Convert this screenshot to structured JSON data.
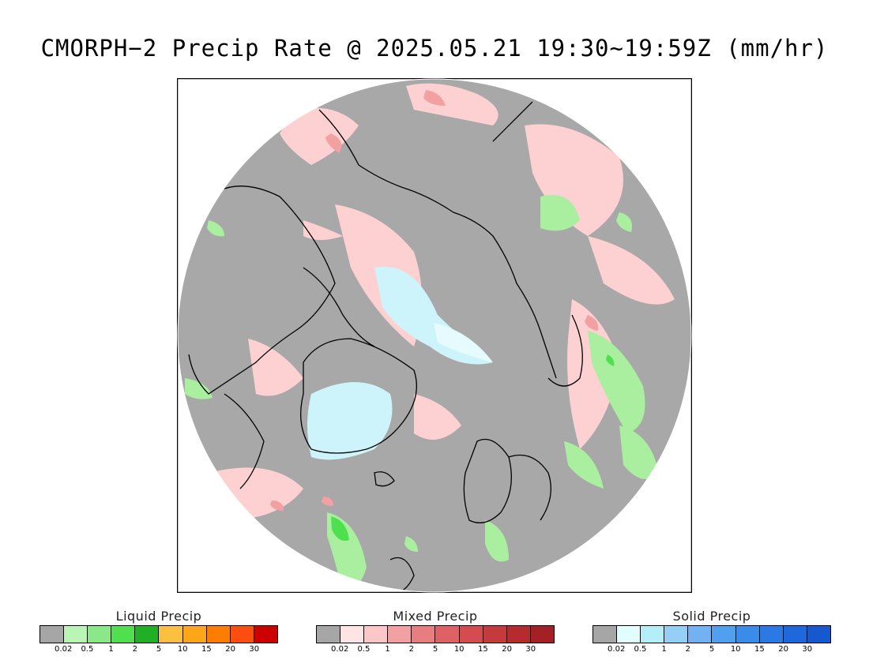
{
  "title": "CMORPH−2 Precip Rate @ 2025.05.21 19:30~19:59Z (mm/hr)",
  "map": {
    "projection": "north polar stereographic",
    "background_color": "#a8a8a8"
  },
  "legends": [
    {
      "key": "liquid",
      "label": "Liquid Precip",
      "colors": [
        "#a6a6a6",
        "#b9f5b4",
        "#8ae888",
        "#4ee04f",
        "#21b025",
        "#fdbf3f",
        "#fda619",
        "#fd7d00",
        "#fd4e10",
        "#cc0000"
      ],
      "ticks": [
        "0.02",
        "0.5",
        "1",
        "2",
        "5",
        "10",
        "15",
        "20",
        "30"
      ]
    },
    {
      "key": "mixed",
      "label": "Mixed Precip",
      "colors": [
        "#a6a6a6",
        "#ffe4e6",
        "#fdc6c8",
        "#f2a0a2",
        "#e87d80",
        "#dd6165",
        "#d44c50",
        "#c43a3d",
        "#b52b2e",
        "#a32124"
      ],
      "ticks": [
        "0.02",
        "0.5",
        "1",
        "2",
        "5",
        "10",
        "15",
        "20",
        "30"
      ]
    },
    {
      "key": "solid",
      "label": "Solid Precip",
      "colors": [
        "#a6a6a6",
        "#e2fdfd",
        "#b3eff8",
        "#95cff8",
        "#73b2f2",
        "#4fa0ef",
        "#398ce9",
        "#2a79e5",
        "#1f67dd",
        "#1658cf"
      ],
      "ticks": [
        "0.02",
        "0.5",
        "1",
        "2",
        "5",
        "10",
        "15",
        "20",
        "30"
      ]
    }
  ]
}
